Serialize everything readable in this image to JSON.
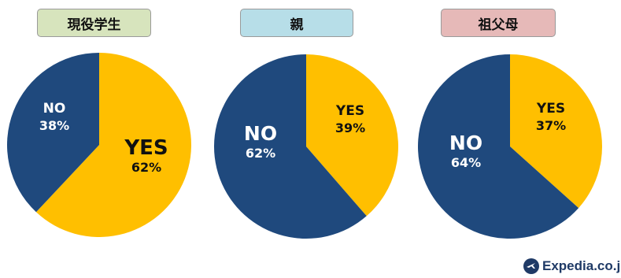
{
  "colors": {
    "yes": "#FFBF00",
    "no": "#1F497D"
  },
  "chart_data": [
    {
      "type": "pie",
      "title": "現役学生",
      "title_bg": "#D7E4BD",
      "slices": [
        {
          "label": "YES",
          "value": 62,
          "text": "62%"
        },
        {
          "label": "NO",
          "value": 38,
          "text": "38%"
        }
      ]
    },
    {
      "type": "pie",
      "title": "親",
      "title_bg": "#B7DEE8",
      "slices": [
        {
          "label": "YES",
          "value": 39,
          "text": "39%"
        },
        {
          "label": "NO",
          "value": 62,
          "text": "62%"
        }
      ]
    },
    {
      "type": "pie",
      "title": "祖父母",
      "title_bg": "#E6B9B8",
      "slices": [
        {
          "label": "YES",
          "value": 37,
          "text": "37%"
        },
        {
          "label": "NO",
          "value": 64,
          "text": "64%"
        }
      ]
    }
  ],
  "brand": {
    "name": "Expedia.co.jp",
    "icon": "plane-icon"
  }
}
